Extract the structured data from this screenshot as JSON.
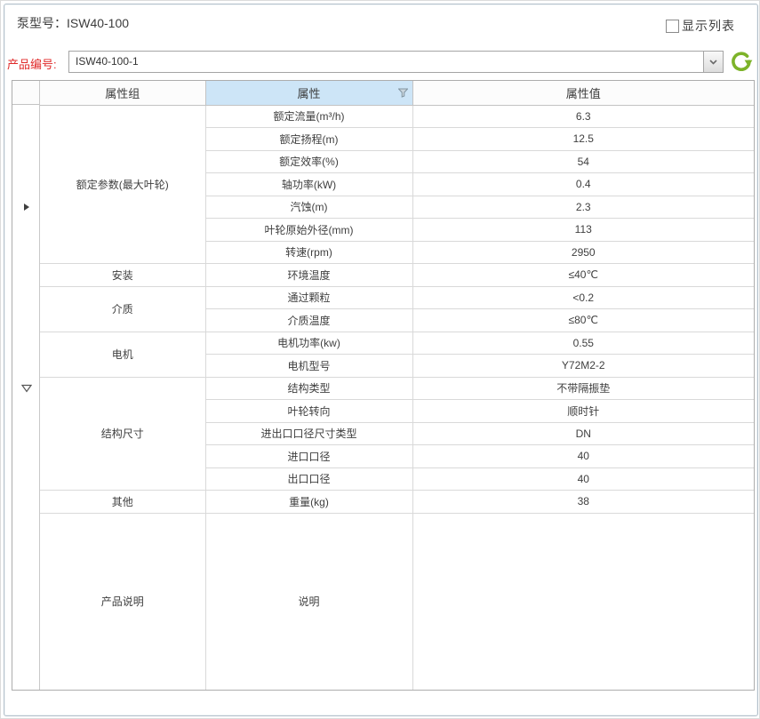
{
  "panel": {
    "title": "泵型号：ISW40-100",
    "show_list": {
      "label": "显示列表",
      "checked": false
    },
    "product_code": {
      "label": "产品编号:",
      "value": "ISW40-100-1"
    }
  },
  "icons": {
    "chevron_down": "v-chevron",
    "refresh": "green-circular-arrow",
    "filter": "funnel",
    "focused_row": "right-filled-triangle",
    "expand": "down-hollow-triangle",
    "show_list_checkbox": "unchecked-box"
  },
  "colors": {
    "attr_header_blue": "#cde5f7",
    "label_red": "#e02a2a",
    "refresh_green": "#7db329",
    "panel_border": "#b4c1cb"
  },
  "table": {
    "columns": [
      "属性组",
      "属性",
      "属性值"
    ],
    "groups": [
      {
        "name": "额定参数(最大叶轮)",
        "rows": [
          {
            "attr": "额定流量(m³/h)",
            "value": "6.3"
          },
          {
            "attr": "额定扬程(m)",
            "value": "12.5"
          },
          {
            "attr": "额定效率(%)",
            "value": "54"
          },
          {
            "attr": "轴功率(kW)",
            "value": "0.4"
          },
          {
            "attr": "汽蚀(m)",
            "value": "2.3"
          },
          {
            "attr": "叶轮原始外径(mm)",
            "value": "113"
          },
          {
            "attr": "转速(rpm)",
            "value": "2950"
          }
        ]
      },
      {
        "name": "安装",
        "rows": [
          {
            "attr": "环境温度",
            "value": "≤40℃"
          }
        ]
      },
      {
        "name": "介质",
        "rows": [
          {
            "attr": "通过颗粒",
            "value": "<0.2"
          },
          {
            "attr": "介质温度",
            "value": "≤80℃"
          }
        ]
      },
      {
        "name": "电机",
        "rows": [
          {
            "attr": "电机功率(kw)",
            "value": "0.55"
          },
          {
            "attr": "电机型号",
            "value": "Y72M2-2"
          }
        ]
      },
      {
        "name": "结构尺寸",
        "rows": [
          {
            "attr": "结构类型",
            "value": "不带隔振垫"
          },
          {
            "attr": "叶轮转向",
            "value": "顺时针"
          },
          {
            "attr": "进出口口径尺寸类型",
            "value": "DN"
          },
          {
            "attr": "进口口径",
            "value": "40"
          },
          {
            "attr": "出口口径",
            "value": "40"
          }
        ]
      },
      {
        "name": "其他",
        "rows": [
          {
            "attr": "重量(kg)",
            "value": "38"
          }
        ]
      },
      {
        "name": "产品说明",
        "rows": [
          {
            "attr": "说明",
            "value": ""
          }
        ]
      }
    ]
  }
}
